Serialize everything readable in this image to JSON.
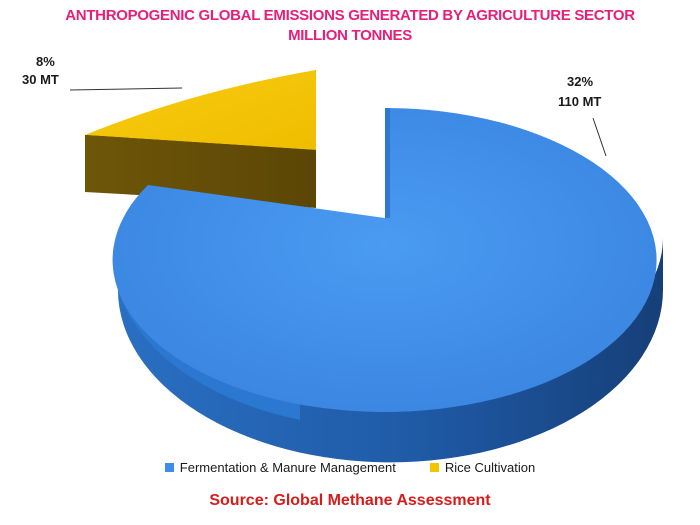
{
  "chart_data": {
    "type": "pie",
    "title": "ANTHROPOGENIC GLOBAL EMISSIONS GENERATED BY AGRICULTURE SECTOR",
    "subtitle": "MILLION TONNES",
    "three_d": true,
    "exploded": true,
    "legend_position": "bottom",
    "slices": [
      {
        "name": "Fermentation & Manure Management",
        "value": 110,
        "percent_label": "32%",
        "value_label": "110 MT",
        "color": "#3d8ee8"
      },
      {
        "name": "Rice Cultivation",
        "value": 30,
        "percent_label": "8%",
        "value_label": "30 MT",
        "color": "#f5c400"
      }
    ]
  },
  "source": "Source: Global Methane Assessment"
}
